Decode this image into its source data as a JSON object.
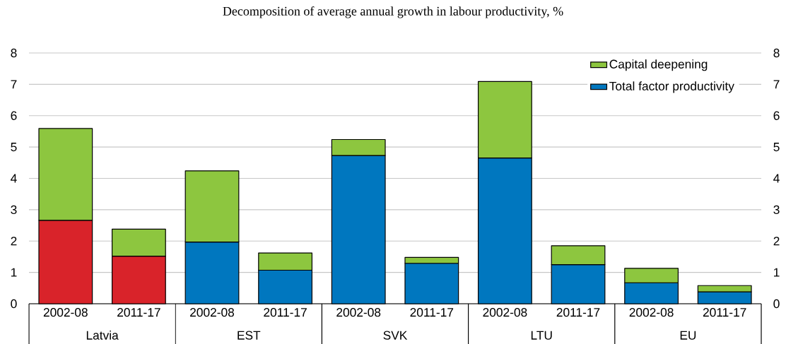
{
  "chart_data": {
    "type": "bar",
    "title": "Decomposition of average annual growth in labour productivity, %",
    "categories": [
      "2002-08",
      "2011-17",
      "2002-08",
      "2011-17",
      "2002-08",
      "2011-17",
      "2002-08",
      "2011-17",
      "2002-08",
      "2011-17"
    ],
    "annotations": [
      "Latvia",
      "EST",
      "SVK",
      "LTU",
      "EU"
    ],
    "stacked": true,
    "series": [
      {
        "name": "Total factor productivity",
        "color": "#0077bf",
        "colors": [
          "#d9232a",
          "#d9232a",
          "#0077bf",
          "#0077bf",
          "#0077bf",
          "#0077bf",
          "#0077bf",
          "#0077bf",
          "#0077bf",
          "#0077bf"
        ],
        "values": [
          2.66,
          1.52,
          1.97,
          1.07,
          4.73,
          1.29,
          4.65,
          1.25,
          0.67,
          0.38
        ]
      },
      {
        "name": "Capital deepening",
        "color": "#8dc63f",
        "values": [
          2.93,
          0.86,
          2.27,
          0.55,
          0.51,
          0.19,
          2.44,
          0.6,
          0.46,
          0.2
        ]
      }
    ],
    "ylim": [
      0,
      8
    ],
    "yticks": [
      0,
      1,
      2,
      3,
      4,
      5,
      6,
      7,
      8
    ],
    "y2lim": [
      0,
      8
    ],
    "y2ticks": [
      0,
      1,
      2,
      3,
      4,
      5,
      6,
      7,
      8
    ],
    "grid": "y",
    "legend": "top right"
  }
}
